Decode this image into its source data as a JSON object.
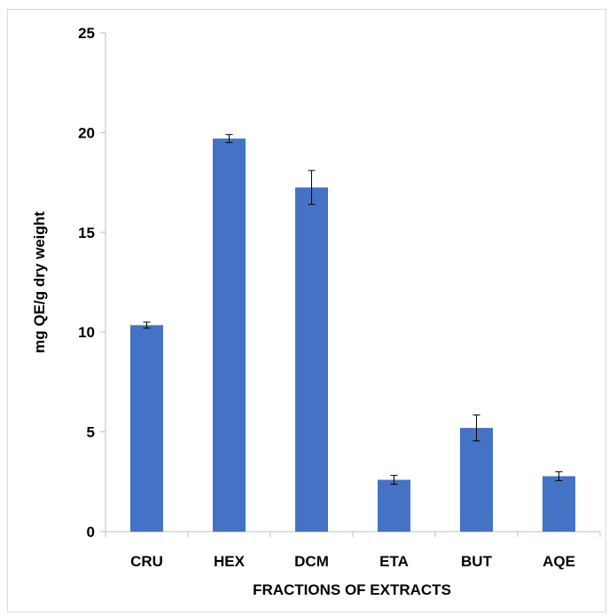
{
  "chart_data": {
    "type": "bar",
    "title": "",
    "xlabel": "FRACTIONS OF EXTRACTS",
    "ylabel": "mg QE/g dry weight",
    "categories": [
      "CRU",
      "HEX",
      "DCM",
      "ETA",
      "BUT",
      "AQE"
    ],
    "series": [
      {
        "values": [
          10.35,
          19.7,
          17.25,
          2.6,
          5.2,
          2.78
        ],
        "errors": [
          0.15,
          0.2,
          0.85,
          0.22,
          0.65,
          0.22
        ],
        "color": "#4472C4"
      }
    ],
    "ylim": [
      0,
      25
    ],
    "yticks": [
      0,
      5,
      10,
      15,
      20,
      25
    ],
    "grid": false,
    "legend": "none"
  }
}
